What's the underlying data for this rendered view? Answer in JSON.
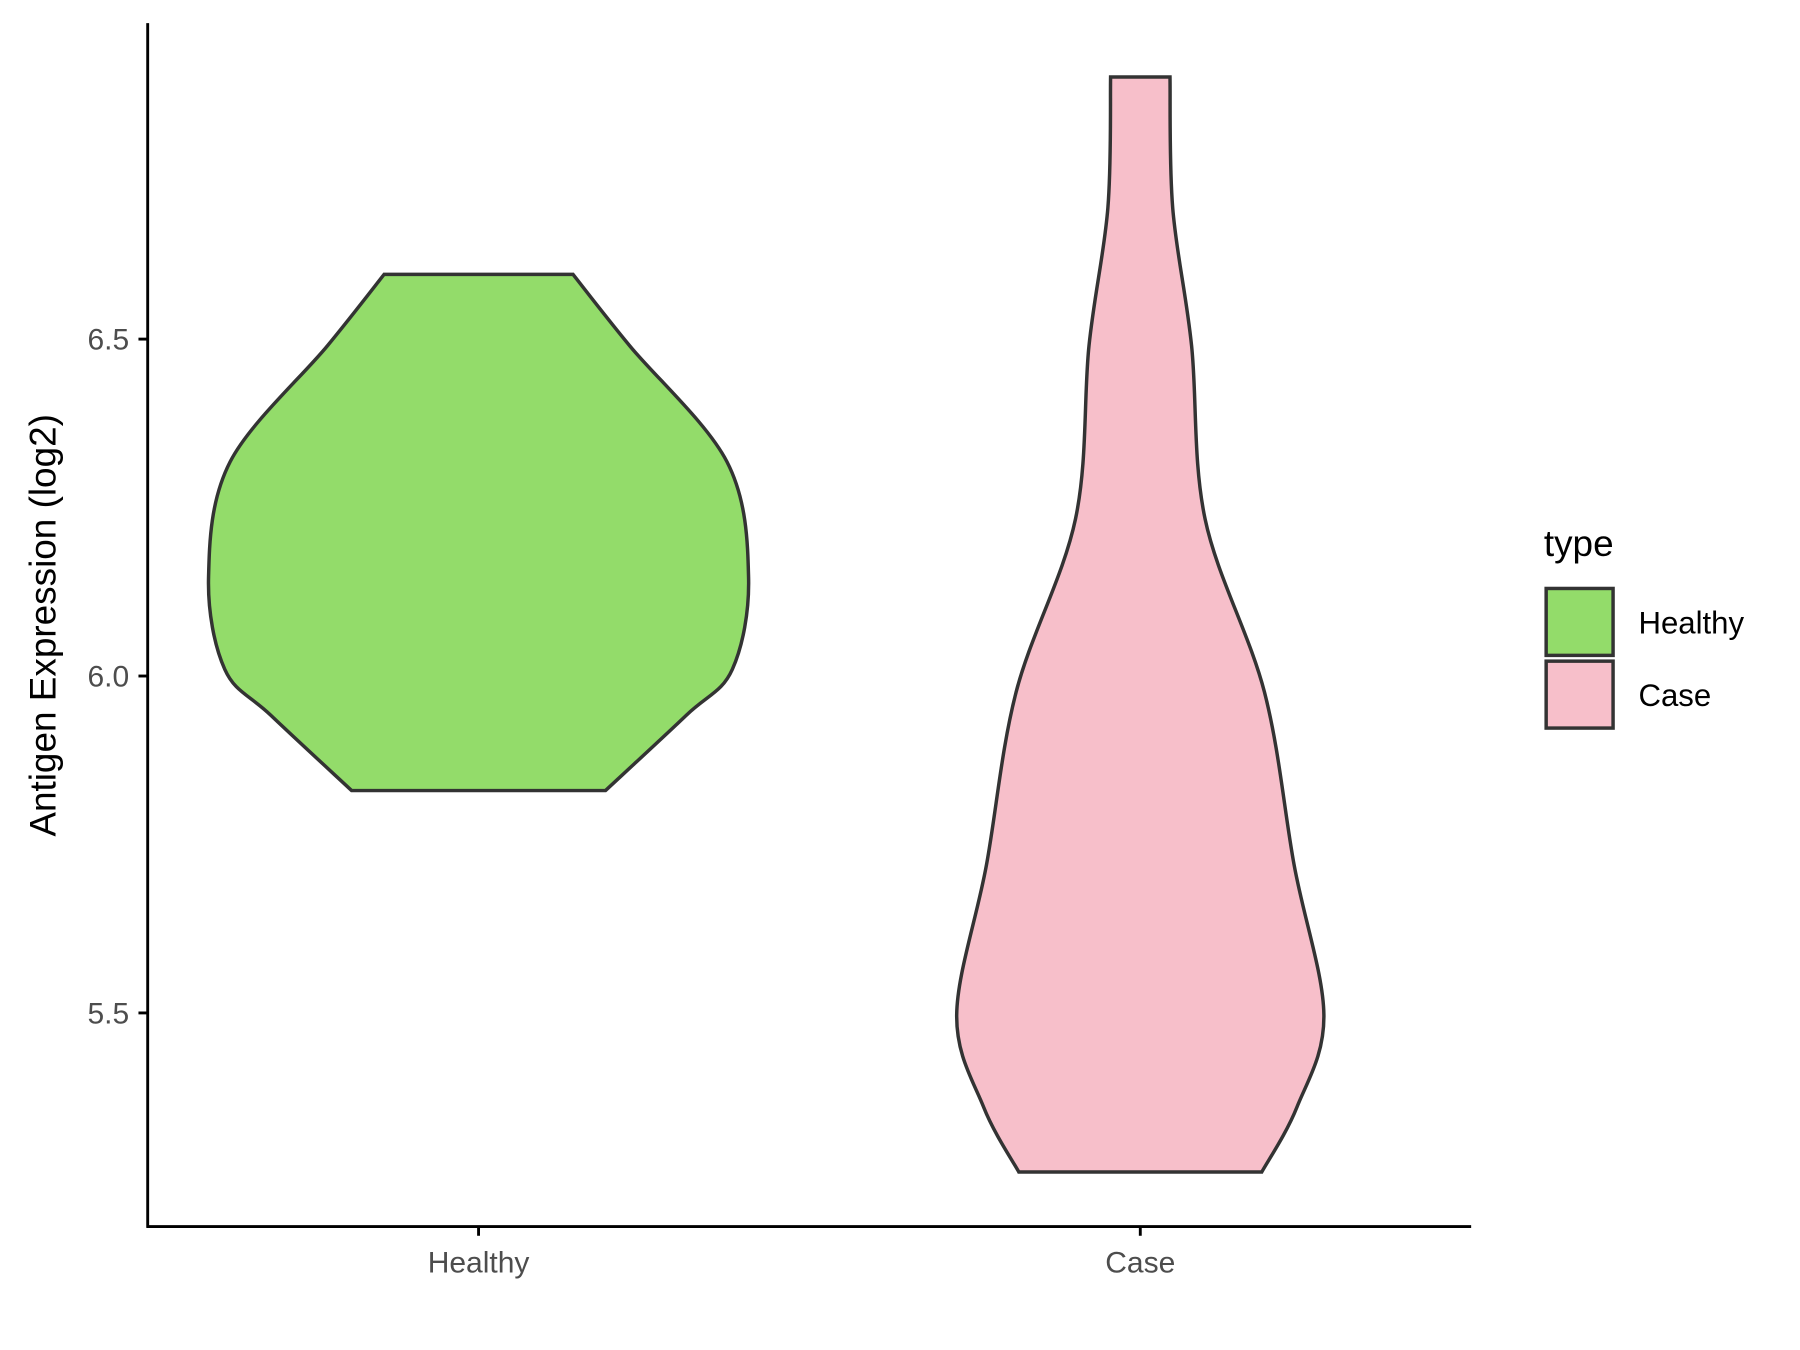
{
  "chart_data": {
    "type": "violin",
    "y_label": "Antigen Expression (log2)",
    "categories": [
      "Healthy",
      "Case"
    ],
    "legend_title": "type",
    "legend_position": "right",
    "ylim": [
      5.183,
      6.969
    ],
    "yticks": [
      5.5,
      {
        "value": 6,
        "label": "6.0"
      },
      6.5
    ],
    "violins": [
      {
        "name": "Healthy",
        "color": "#93dc6a",
        "y": [
          6.596,
          6.49,
          6.318,
          6.147,
          6.01,
          5.942,
          5.83
        ],
        "density": [
          0.35,
          0.56,
          0.92,
          1.0,
          0.94,
          0.77,
          0.47
        ]
      },
      {
        "name": "Case",
        "color": "#f7bfca",
        "y": [
          6.889,
          6.695,
          6.49,
          6.233,
          5.976,
          5.719,
          5.497,
          5.36,
          5.264
        ],
        "density": [
          0.11,
          0.12,
          0.19,
          0.24,
          0.46,
          0.57,
          0.68,
          0.58,
          0.45
        ]
      }
    ]
  }
}
